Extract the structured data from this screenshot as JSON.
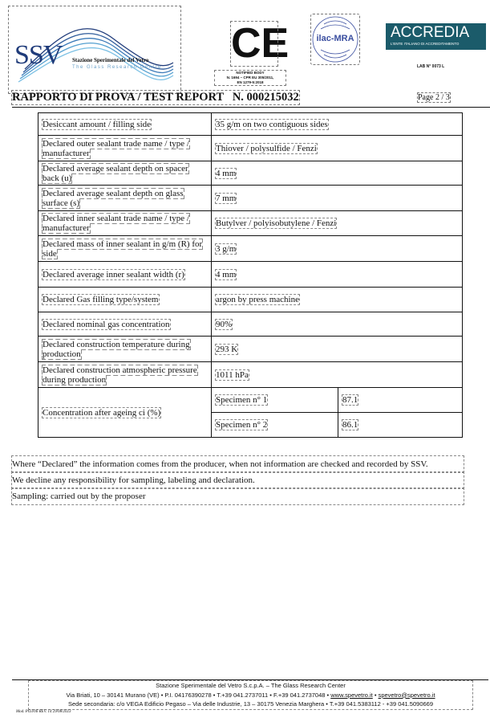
{
  "header": {
    "ssv_logo": {
      "mark": "SSV",
      "name": "Stazione Sperimentale del Vetro",
      "subtitle": "The Glass Research Centre"
    },
    "ce_mark": "CE",
    "ce_note": [
      "NOTIFIED BODY",
      "N. 1694 – CPR EU 305/2011,",
      "EN 1279-5:2018"
    ],
    "ilac": "ilac-MRA",
    "accredia": {
      "name": "ACCREDIA",
      "subtitle": "L'ENTE ITALIANO DI ACCREDITAMENTO"
    },
    "lab_no": "LAB N° 0073 L"
  },
  "report": {
    "title": "RAPPORTO DI PROVA / TEST REPORT   N. 000215032",
    "page": "Page 2 / 3"
  },
  "table": {
    "rows": [
      {
        "label": "Desiccant amount / filling side",
        "value": "35 g/m on two contiguous sides"
      },
      {
        "label": "Declared outer sealant trade name / type / manufacturer",
        "value": "Thiover / polysulfide / Fenzi"
      },
      {
        "label": "Declared average sealant depth on spacer back (u)",
        "value": "4 mm"
      },
      {
        "label": "Declared average sealant depth on glass surface (s)",
        "value": "7 mm"
      },
      {
        "label": "Declared inner sealant trade name / type / manufacturer",
        "value": "Butylver / polyisobutylene / Fenzi"
      },
      {
        "label": "Declared mass of inner sealant in g/m  (R) for side",
        "value": "3 g/m"
      },
      {
        "label": "Declared average inner sealant width (r)",
        "value": "4 mm"
      },
      {
        "label": "Declared Gas filling type/system",
        "value": "argon by press machine"
      },
      {
        "label": "Declared nominal gas concentration",
        "value": "90%"
      },
      {
        "label": "Declared construction temperature during production",
        "value": "293 K"
      },
      {
        "label": "Declared construction atmospheric pressure during production",
        "value": "1011 hPa"
      }
    ],
    "concentration": {
      "label": "Concentration after ageing ci (%)",
      "specimens": [
        {
          "name": "Specimen n° 1",
          "value": "87.1"
        },
        {
          "name": "Specimen n° 2",
          "value": "86.1"
        }
      ]
    }
  },
  "notes": [
    "Where “Declared” the information comes from the producer, when not information are checked and recorded by SSV.",
    "We decline any responsibility for sampling, labeling and declaration.",
    "Sampling: carried out by the proposer"
  ],
  "footer": {
    "line1": "Stazione Sperimentale del Vetro S.c.p.A. – The Glass Research Center",
    "line2": "Via Briati, 10 – 30141 Murano (VE) • P.I. 04176390278 • T.+39 041.2737011 • F.+39 041.2737048 •",
    "web": "www.spevetro.it",
    "email": "spevetro@spevetro.it",
    "line3": "Sede secondaria: c/o VEGA Edificio Pegaso – Via delle Industrie, 13 – 30175 Venezia Marghera • T.+39 041.5383112 - +39 041.5090669",
    "mod": "Mod. PO3/06 REV. 14 29/08/2023"
  }
}
